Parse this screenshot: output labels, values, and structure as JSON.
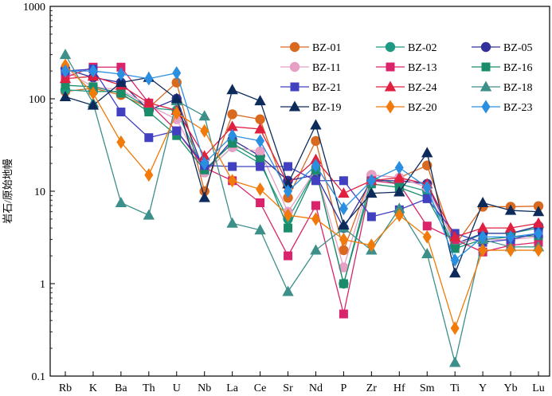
{
  "chart_data": {
    "type": "line",
    "title": "",
    "xlabel": "",
    "ylabel": "岩石/原始地幔",
    "y_scale": "log",
    "ylim": [
      0.1,
      1000
    ],
    "y_ticks": [
      {
        "value": 1000,
        "label": "1000"
      },
      {
        "value": 100,
        "label": "100"
      },
      {
        "value": 10,
        "label": "10"
      },
      {
        "value": 1,
        "label": "1"
      },
      {
        "value": 0.1,
        "label": "0.1"
      }
    ],
    "categories": [
      "Rb",
      "K",
      "Ba",
      "Th",
      "U",
      "Nb",
      "La",
      "Ce",
      "Sr",
      "Nd",
      "P",
      "Zr",
      "Hf",
      "Sm",
      "Ti",
      "Y",
      "Yb",
      "Lu"
    ],
    "legend_position": "top-right",
    "legend_columns": 3,
    "series": [
      {
        "name": "BZ-01",
        "color": "#d9691f",
        "marker": "circle",
        "values": [
          120,
          130,
          110,
          80,
          150,
          10,
          68,
          60,
          8.5,
          35,
          2.3,
          15,
          14,
          19,
          2.6,
          6.8,
          6.8,
          6.9
        ]
      },
      {
        "name": "BZ-02",
        "color": "#1f9a82",
        "marker": "circle",
        "values": [
          125,
          120,
          120,
          80,
          75,
          16,
          30,
          20,
          5,
          17,
          1.0,
          14,
          12,
          10,
          2.5,
          3.5,
          3.5,
          4.0
        ]
      },
      {
        "name": "BZ-05",
        "color": "#30309a",
        "marker": "circle",
        "values": [
          210,
          170,
          150,
          75,
          100,
          16,
          36,
          24,
          13,
          15,
          4.0,
          13,
          13,
          12,
          2.7,
          3.5,
          3.5,
          4.2
        ]
      },
      {
        "name": "BZ-11",
        "color": "#e6a0c4",
        "marker": "circle",
        "values": [
          200,
          135,
          125,
          85,
          60,
          16,
          30,
          27,
          6,
          17,
          1.5,
          15,
          14,
          11,
          2.8,
          3.0,
          3.0,
          3.2
        ]
      },
      {
        "name": "BZ-13",
        "color": "#d9246b",
        "marker": "square",
        "values": [
          170,
          220,
          220,
          90,
          45,
          18,
          13,
          7.5,
          2.0,
          7.0,
          0.47,
          13,
          12,
          4.2,
          3.0,
          2.2,
          2.6,
          2.8
        ]
      },
      {
        "name": "BZ-16",
        "color": "#1a8c6a",
        "marker": "square",
        "values": [
          140,
          135,
          115,
          72,
          40,
          17,
          33,
          22,
          4.0,
          17,
          1.0,
          12,
          11,
          8.5,
          2.4,
          3.0,
          3.2,
          3.3
        ]
      },
      {
        "name": "BZ-21",
        "color": "#4040c0",
        "marker": "square",
        "values": [
          200,
          210,
          72,
          38,
          45,
          19,
          18.5,
          18.5,
          18.5,
          13,
          13,
          5.3,
          6.3,
          8.3,
          3.5,
          2.8,
          3.0,
          3.5
        ]
      },
      {
        "name": "BZ-24",
        "color": "#e0203f",
        "marker": "triangle",
        "values": [
          165,
          175,
          140,
          90,
          75,
          24,
          50,
          47,
          12,
          22,
          9.5,
          13,
          14,
          12,
          3.2,
          4.0,
          4.0,
          4.5
        ]
      },
      {
        "name": "BZ-18",
        "color": "#3d8f8a",
        "marker": "triangle",
        "values": [
          300,
          90,
          7.5,
          5.5,
          95,
          65,
          4.5,
          3.8,
          0.82,
          2.3,
          4.0,
          2.3,
          6.5,
          2.1,
          0.14,
          3.0,
          2.5,
          2.5
        ]
      },
      {
        "name": "BZ-19",
        "color": "#0d2b5a",
        "marker": "triangle",
        "values": [
          105,
          85,
          150,
          170,
          100,
          8.5,
          125,
          95,
          12,
          52,
          4.3,
          9.5,
          9.8,
          26,
          1.3,
          7.5,
          6.2,
          6.0
        ]
      },
      {
        "name": "BZ-20",
        "color": "#f07a0a",
        "marker": "diamond",
        "values": [
          230,
          115,
          34,
          15,
          70,
          45,
          13,
          10.5,
          5.5,
          5.0,
          3.0,
          2.6,
          5.5,
          3.2,
          0.33,
          2.3,
          2.3,
          2.3
        ]
      },
      {
        "name": "BZ-23",
        "color": "#2a8fe0",
        "marker": "diamond",
        "values": [
          200,
          200,
          185,
          165,
          190,
          20,
          40,
          35,
          10,
          19,
          6.5,
          13,
          18,
          11,
          1.8,
          3.2,
          3.2,
          3.5
        ]
      }
    ]
  }
}
